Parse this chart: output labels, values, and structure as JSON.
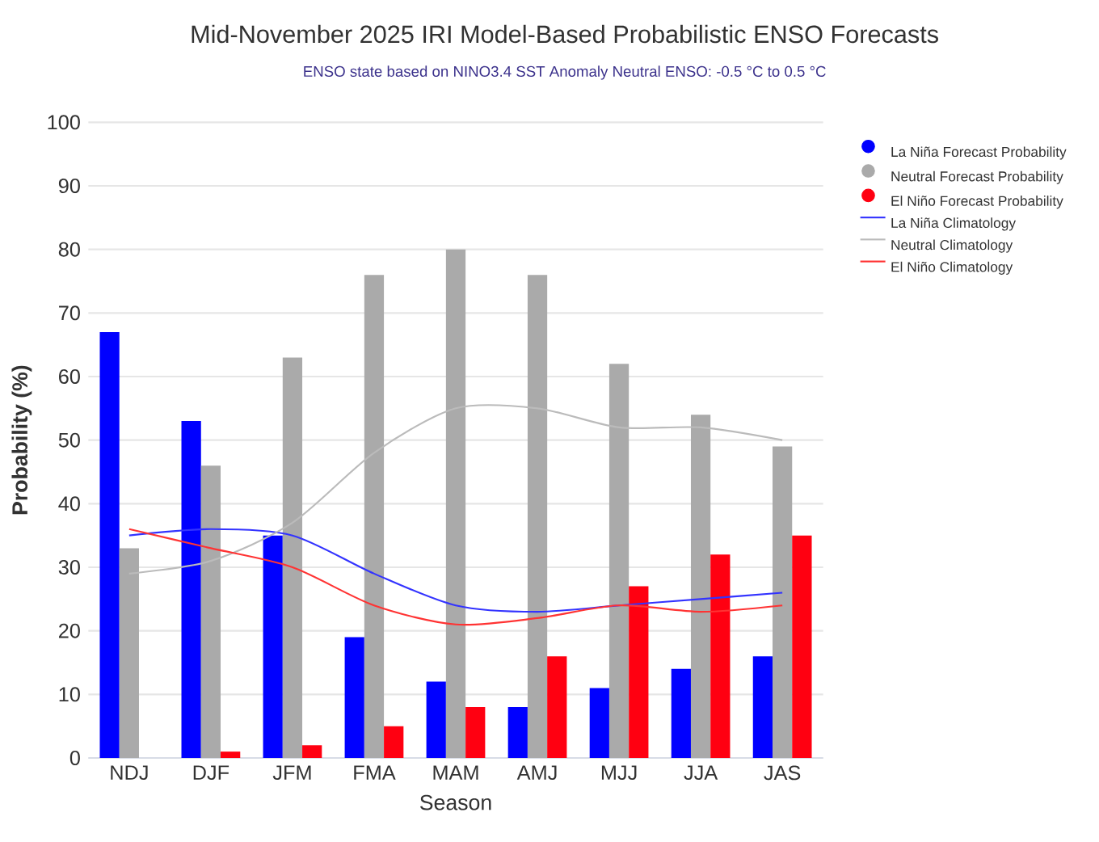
{
  "chart_data": {
    "type": "bar",
    "title": "Mid-November 2025 IRI Model-Based Probabilistic ENSO Forecasts",
    "subtitle": "ENSO state based on NINO3.4 SST Anomaly Neutral ENSO: -0.5 °C to 0.5 °C",
    "xlabel": "Season",
    "ylabel": "Probability (%)",
    "categories": [
      "NDJ",
      "DJF",
      "JFM",
      "FMA",
      "MAM",
      "AMJ",
      "MJJ",
      "JJA",
      "JAS"
    ],
    "series": [
      {
        "name": "La Niña Forecast Probability",
        "color": "#0000ff",
        "values": [
          67,
          53,
          35,
          19,
          12,
          8,
          11,
          14,
          16
        ]
      },
      {
        "name": "Neutral Forecast Probability",
        "color": "#aaaaaa",
        "values": [
          33,
          46,
          63,
          76,
          80,
          76,
          62,
          54,
          49
        ]
      },
      {
        "name": "El Niño Forecast Probability",
        "color": "#ff0011",
        "values": [
          0,
          1,
          2,
          5,
          8,
          16,
          27,
          32,
          35
        ]
      },
      {
        "name": "La Niña Climatology",
        "type": "line",
        "color": "#3333ff",
        "values": [
          35,
          36,
          35,
          29,
          24,
          23,
          24,
          25,
          26
        ]
      },
      {
        "name": "Neutral Climatology",
        "type": "line",
        "color": "#bbbbbb",
        "values": [
          29,
          31,
          37,
          48,
          55,
          55,
          52,
          52,
          50
        ]
      },
      {
        "name": "El Niño Climatology",
        "type": "line",
        "color": "#ff3333",
        "values": [
          36,
          33,
          30,
          24,
          21,
          22,
          24,
          23,
          24
        ]
      }
    ],
    "ylim": [
      0,
      100
    ],
    "yticks": [
      0,
      10,
      20,
      30,
      40,
      50,
      60,
      70,
      80,
      90,
      100
    ],
    "grid": "y",
    "legend": "right",
    "marker": "none",
    "line_style": "solid"
  }
}
